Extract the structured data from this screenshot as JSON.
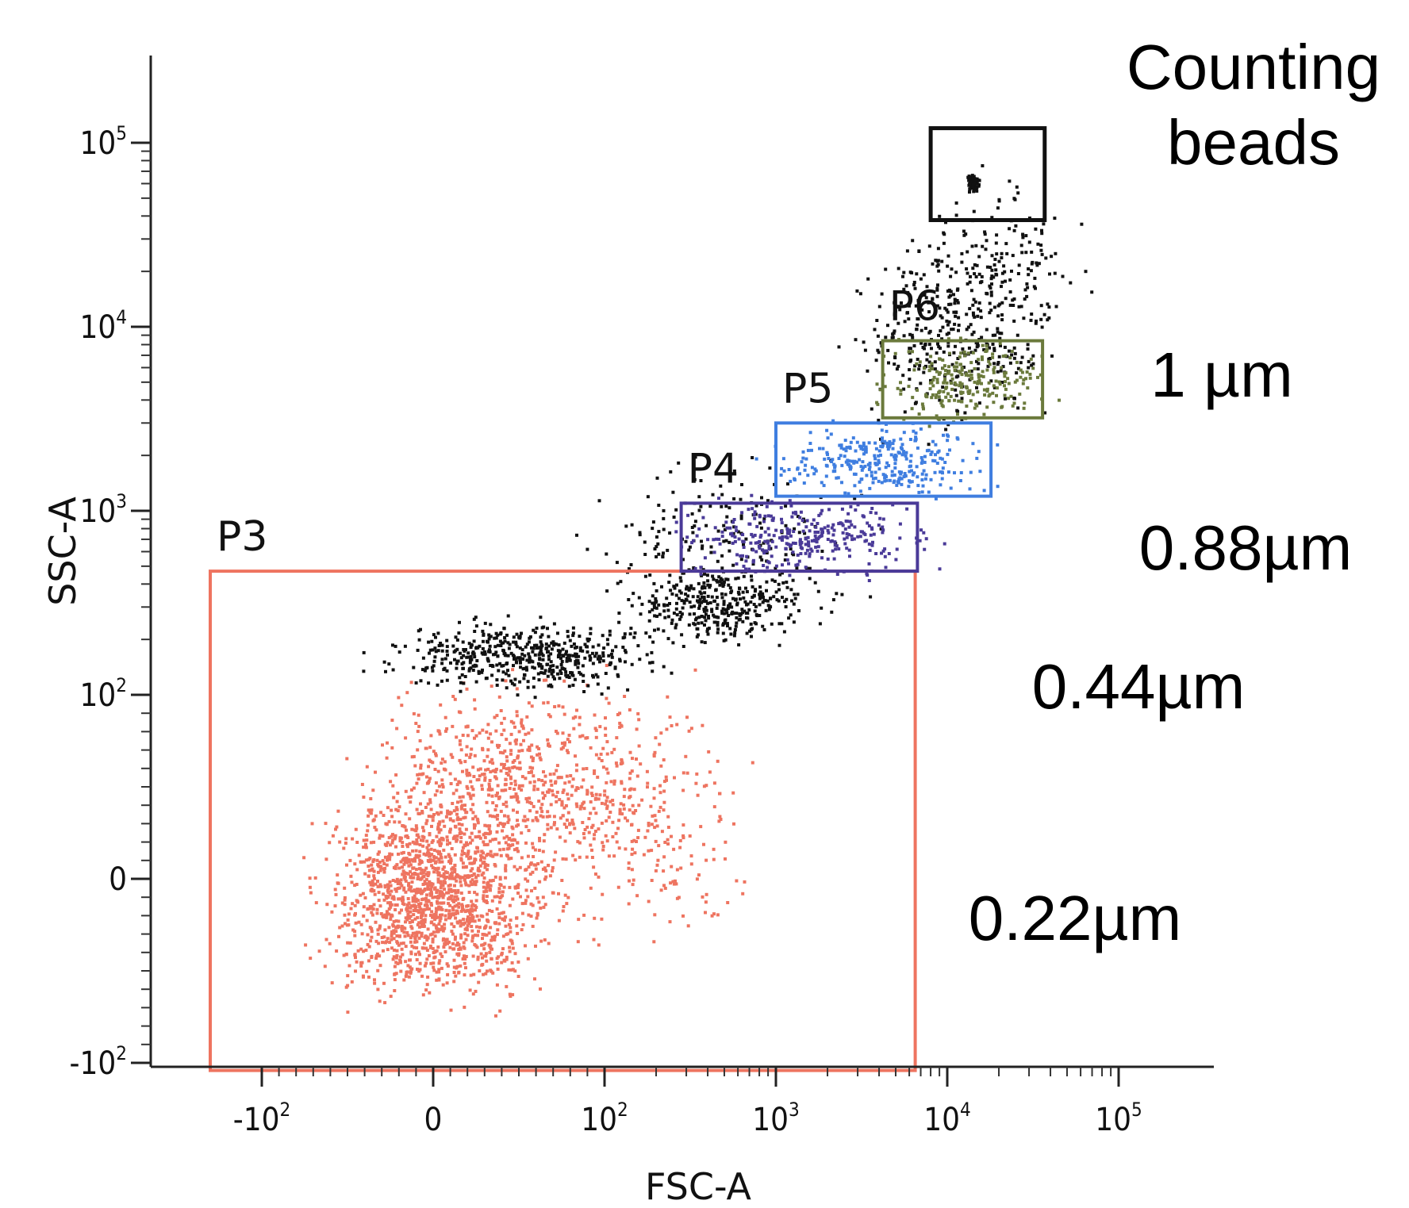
{
  "chart_data": {
    "type": "scatter",
    "title": "",
    "xlabel": "FSC-A",
    "ylabel": "SSC-A",
    "x_scale": "biexponential",
    "y_scale": "biexponential",
    "x_ticks": [
      {
        "value": -100,
        "base": "-10",
        "exp": "2"
      },
      {
        "value": 0,
        "base": "0",
        "exp": ""
      },
      {
        "value": 100,
        "base": "10",
        "exp": "2"
      },
      {
        "value": 1000,
        "base": "10",
        "exp": "3"
      },
      {
        "value": 10000,
        "base": "10",
        "exp": "4"
      },
      {
        "value": 100000,
        "base": "10",
        "exp": "5"
      }
    ],
    "y_ticks": [
      {
        "value": -100,
        "base": "-10",
        "exp": "2"
      },
      {
        "value": 0,
        "base": "0",
        "exp": ""
      },
      {
        "value": 100,
        "base": "10",
        "exp": "2"
      },
      {
        "value": 1000,
        "base": "10",
        "exp": "3"
      },
      {
        "value": 10000,
        "base": "10",
        "exp": "4"
      },
      {
        "value": 100000,
        "base": "10",
        "exp": "5"
      }
    ],
    "xlim": [
      -250,
      200000
    ],
    "ylim": [
      -130,
      220000
    ],
    "gates": [
      {
        "name": "P3",
        "color": "#ee7460",
        "x": [
          -200,
          6500
        ],
        "y": [
          -110,
          470
        ]
      },
      {
        "name": "P4",
        "color": "#4a3a98",
        "x": [
          280,
          6700
        ],
        "y": [
          470,
          1100
        ]
      },
      {
        "name": "P5",
        "color": "#3f7ee0",
        "x": [
          1000,
          18000
        ],
        "y": [
          1200,
          3000
        ]
      },
      {
        "name": "P6",
        "color": "#6b7a3c",
        "x": [
          4200,
          36000
        ],
        "y": [
          3200,
          8400
        ]
      },
      {
        "name": "",
        "color": "#111111",
        "x": [
          8000,
          37000
        ],
        "y": [
          38000,
          120000
        ]
      }
    ],
    "annotations": [
      {
        "text": "Counting beads",
        "lines": [
          "Counting",
          "beads"
        ]
      },
      {
        "text": "1 µm"
      },
      {
        "text": "0.88µm"
      },
      {
        "text": "0.44µm"
      },
      {
        "text": "0.22µm"
      }
    ],
    "series": [
      {
        "color": "#ee7460",
        "clusters": [
          {
            "x": [
              -60,
              60
            ],
            "y": [
              -60,
              40
            ],
            "n": 1500
          },
          {
            "x": [
              -30,
              150
            ],
            "y": [
              0,
              110
            ],
            "n": 700
          },
          {
            "x": [
              60,
              600
            ],
            "y": [
              -30,
              100
            ],
            "n": 260
          }
        ]
      },
      {
        "color": "#111111",
        "clusters": [
          {
            "x": [
              -20,
              180
            ],
            "y": [
              110,
              250
            ],
            "n": 500
          },
          {
            "x": [
              150,
              1500
            ],
            "y": [
              200,
              500
            ],
            "n": 350
          },
          {
            "x": [
              100,
              3000
            ],
            "y": [
              300,
              2000
            ],
            "n": 180
          },
          {
            "x": [
              3000,
              40000
            ],
            "y": [
              3000,
              30000
            ],
            "n": 380
          },
          {
            "x": [
              8000,
              60000
            ],
            "y": [
              10000,
              60000
            ],
            "n": 120
          },
          {
            "x": [
              13000,
              15000
            ],
            "y": [
              55000,
              68000
            ],
            "n": 90
          }
        ]
      },
      {
        "color": "#4a3a98",
        "clusters": [
          {
            "x": [
              300,
              6500
            ],
            "y": [
              480,
              1100
            ],
            "n": 320
          }
        ]
      },
      {
        "color": "#3f7ee0",
        "clusters": [
          {
            "x": [
              1050,
              17000
            ],
            "y": [
              1250,
              2900
            ],
            "n": 300
          }
        ]
      },
      {
        "color": "#6b7a3c",
        "clusters": [
          {
            "x": [
              4400,
              35000
            ],
            "y": [
              3300,
              8200
            ],
            "n": 240
          }
        ]
      }
    ]
  }
}
